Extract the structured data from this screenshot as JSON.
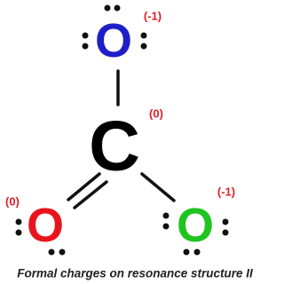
{
  "nodes": [
    {
      "label": "O",
      "charge": "(-1)"
    },
    {
      "label": "C",
      "charge": "(0)"
    },
    {
      "label": "O",
      "charge": "(0)"
    },
    {
      "label": "O",
      "charge": "(-1)"
    }
  ],
  "caption": "Formal charges on resonance structure II"
}
